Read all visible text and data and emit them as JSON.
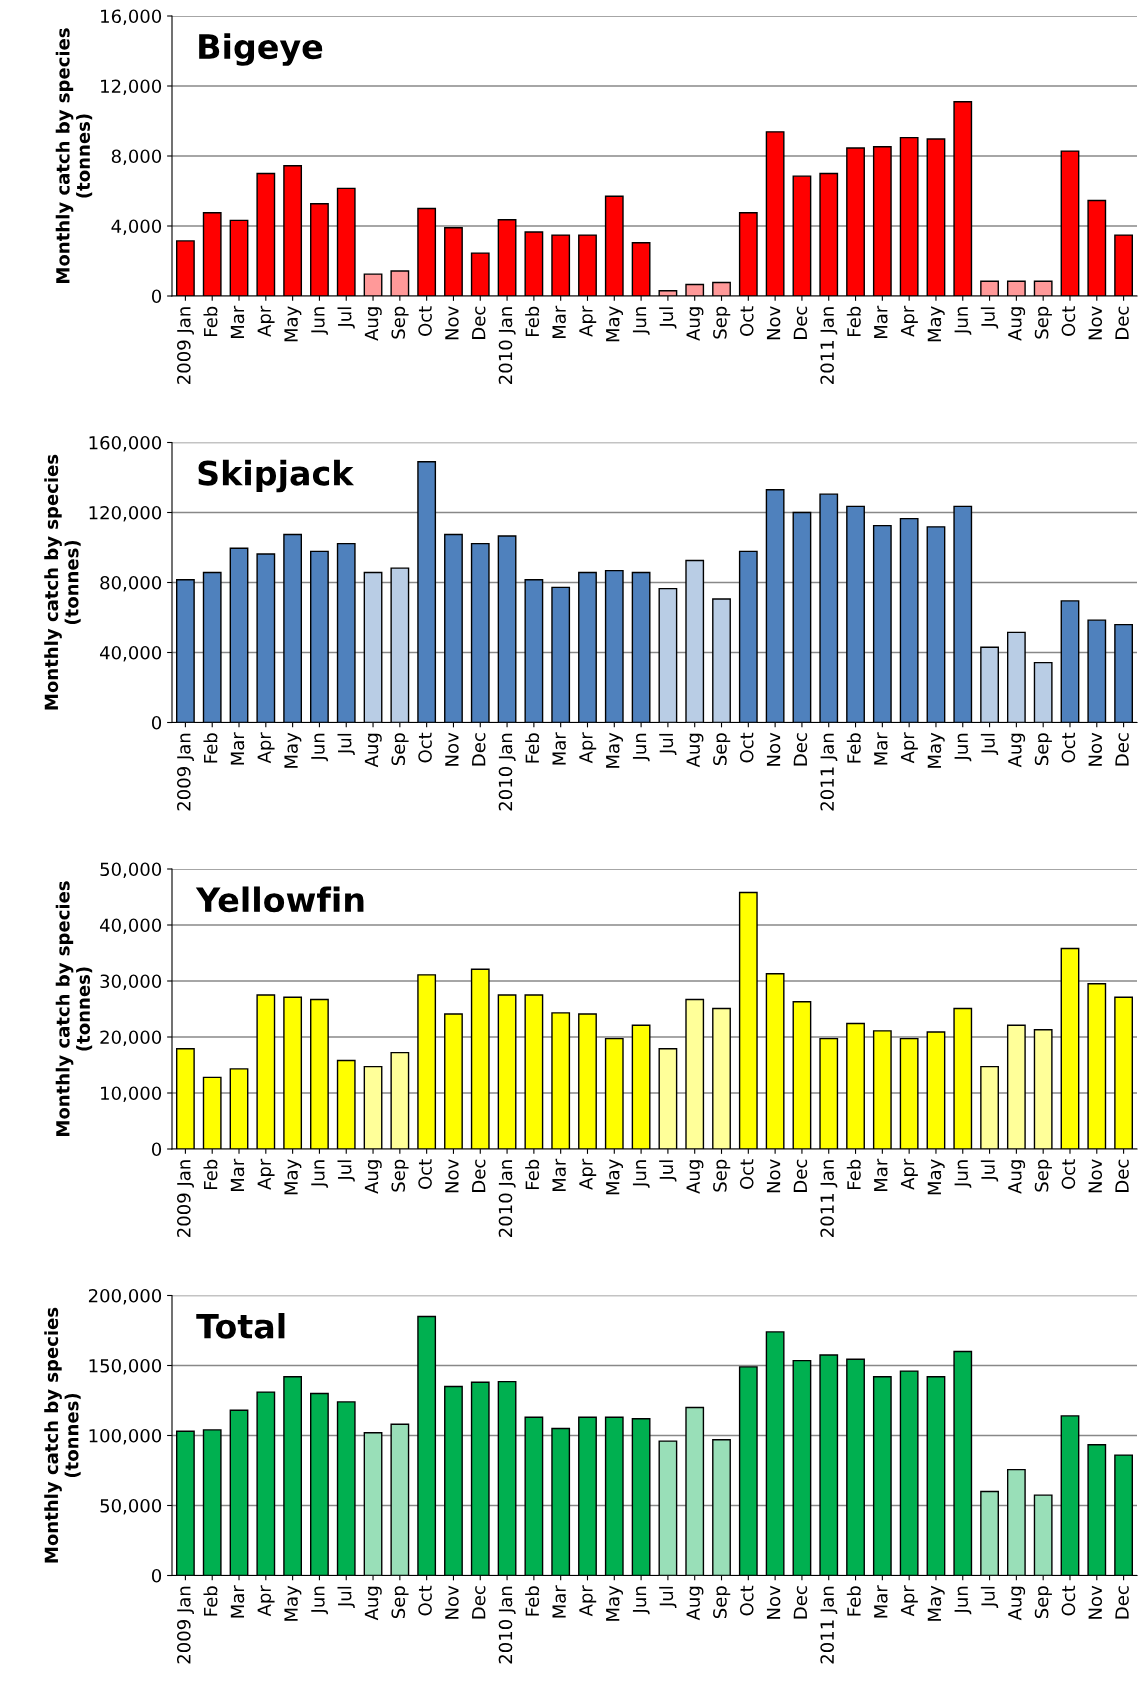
{
  "chart_data": [
    {
      "type": "bar",
      "title": "Bigeye",
      "ylabel": "Monthly catch by species\n(tonnes)",
      "categories": [
        "2009 Jan",
        "Feb",
        "Mar",
        "Apr",
        "May",
        "Jun",
        "Jul",
        "Aug",
        "Sep",
        "Oct",
        "Nov",
        "Dec",
        "2010 Jan",
        "Feb",
        "Mar",
        "Apr",
        "May",
        "Jun",
        "Jul",
        "Aug",
        "Sep",
        "Oct",
        "Nov",
        "Dec",
        "2011 Jan",
        "Feb",
        "Mar",
        "Apr",
        "May",
        "Jun",
        "Jul",
        "Aug",
        "Sep",
        "Oct",
        "Nov",
        "Dec"
      ],
      "values": [
        3150,
        4760,
        4320,
        7000,
        7440,
        5270,
        6150,
        1250,
        1430,
        5000,
        3900,
        2450,
        4360,
        3660,
        3480,
        3480,
        5700,
        3040,
        300,
        660,
        770,
        4760,
        9380,
        6850,
        7000,
        8460,
        8530,
        9050,
        8970,
        11100,
        840,
        840,
        840,
        8280,
        5460,
        3480
      ],
      "colors": [
        "#ff0000",
        "#ff0000",
        "#ff0000",
        "#ff0000",
        "#ff0000",
        "#ff0000",
        "#ff0000",
        "#ff9999",
        "#ff9999",
        "#ff0000",
        "#ff0000",
        "#ff0000",
        "#ff0000",
        "#ff0000",
        "#ff0000",
        "#ff0000",
        "#ff0000",
        "#ff0000",
        "#ff9999",
        "#ff9999",
        "#ff9999",
        "#ff0000",
        "#ff0000",
        "#ff0000",
        "#ff0000",
        "#ff0000",
        "#ff0000",
        "#ff0000",
        "#ff0000",
        "#ff0000",
        "#ff9999",
        "#ff9999",
        "#ff9999",
        "#ff0000",
        "#ff0000",
        "#ff0000"
      ],
      "ylim": [
        0,
        16000
      ],
      "yticks": [
        {
          "value": 0,
          "label": "0"
        },
        {
          "value": 4000,
          "label": "4,000"
        },
        {
          "value": 8000,
          "label": "8,000"
        },
        {
          "value": 12000,
          "label": "12,000"
        },
        {
          "value": 16000,
          "label": "16,000"
        }
      ],
      "grid": "y",
      "legend": false
    },
    {
      "type": "bar",
      "title": "Skipjack",
      "ylabel": "Monthly catch by species\n(tonnes)",
      "categories": [
        "2009 Jan",
        "Feb",
        "Mar",
        "Apr",
        "May",
        "Jun",
        "Jul",
        "Aug",
        "Sep",
        "Oct",
        "Nov",
        "Dec",
        "2010 Jan",
        "Feb",
        "Mar",
        "Apr",
        "May",
        "Jun",
        "Jul",
        "Aug",
        "Sep",
        "Oct",
        "Nov",
        "Dec",
        "2011 Jan",
        "Feb",
        "Mar",
        "Apr",
        "May",
        "Jun",
        "Jul",
        "Aug",
        "Sep",
        "Oct",
        "Nov",
        "Dec"
      ],
      "values": [
        81600,
        85700,
        99600,
        96300,
        107400,
        97800,
        102200,
        85700,
        88200,
        149000,
        107400,
        102200,
        106600,
        81600,
        77200,
        85700,
        86800,
        85700,
        76500,
        92600,
        70600,
        97800,
        133000,
        120000,
        130500,
        123500,
        112500,
        116500,
        111800,
        123500,
        43000,
        51500,
        34200,
        69500,
        58500,
        55900
      ],
      "colors": [
        "#4f81bd",
        "#4f81bd",
        "#4f81bd",
        "#4f81bd",
        "#4f81bd",
        "#4f81bd",
        "#4f81bd",
        "#b9cde5",
        "#b9cde5",
        "#4f81bd",
        "#4f81bd",
        "#4f81bd",
        "#4f81bd",
        "#4f81bd",
        "#4f81bd",
        "#4f81bd",
        "#4f81bd",
        "#4f81bd",
        "#b9cde5",
        "#b9cde5",
        "#b9cde5",
        "#4f81bd",
        "#4f81bd",
        "#4f81bd",
        "#4f81bd",
        "#4f81bd",
        "#4f81bd",
        "#4f81bd",
        "#4f81bd",
        "#4f81bd",
        "#b9cde5",
        "#b9cde5",
        "#b9cde5",
        "#4f81bd",
        "#4f81bd",
        "#4f81bd"
      ],
      "ylim": [
        0,
        160000
      ],
      "yticks": [
        {
          "value": 0,
          "label": "0"
        },
        {
          "value": 40000,
          "label": "40,000"
        },
        {
          "value": 80000,
          "label": "80,000"
        },
        {
          "value": 120000,
          "label": "120,000"
        },
        {
          "value": 160000,
          "label": "160,000"
        }
      ],
      "grid": "y",
      "legend": false
    },
    {
      "type": "bar",
      "title": "Yellowfin",
      "ylabel": "Monthly catch by species\n(tonnes)",
      "categories": [
        "2009 Jan",
        "Feb",
        "Mar",
        "Apr",
        "May",
        "Jun",
        "Jul",
        "Aug",
        "Sep",
        "Oct",
        "Nov",
        "Dec",
        "2010 Jan",
        "Feb",
        "Mar",
        "Apr",
        "May",
        "Jun",
        "Jul",
        "Aug",
        "Sep",
        "Oct",
        "Nov",
        "Dec",
        "2011 Jan",
        "Feb",
        "Mar",
        "Apr",
        "May",
        "Jun",
        "Jul",
        "Aug",
        "Sep",
        "Oct",
        "Nov",
        "Dec"
      ],
      "values": [
        17900,
        12800,
        14300,
        27500,
        27100,
        26700,
        15800,
        14700,
        17200,
        31100,
        24100,
        32100,
        27500,
        27500,
        24300,
        24100,
        19700,
        22100,
        17900,
        26700,
        25100,
        45800,
        31300,
        26300,
        19700,
        22400,
        21100,
        19700,
        20900,
        25100,
        14700,
        22100,
        21300,
        35800,
        29500,
        27100
      ],
      "colors": [
        "#ffff00",
        "#ffff00",
        "#ffff00",
        "#ffff00",
        "#ffff00",
        "#ffff00",
        "#ffff00",
        "#ffff99",
        "#ffff99",
        "#ffff00",
        "#ffff00",
        "#ffff00",
        "#ffff00",
        "#ffff00",
        "#ffff00",
        "#ffff00",
        "#ffff00",
        "#ffff00",
        "#ffff99",
        "#ffff99",
        "#ffff99",
        "#ffff00",
        "#ffff00",
        "#ffff00",
        "#ffff00",
        "#ffff00",
        "#ffff00",
        "#ffff00",
        "#ffff00",
        "#ffff00",
        "#ffff99",
        "#ffff99",
        "#ffff99",
        "#ffff00",
        "#ffff00",
        "#ffff00"
      ],
      "ylim": [
        0,
        50000
      ],
      "yticks": [
        {
          "value": 0,
          "label": "0"
        },
        {
          "value": 10000,
          "label": "10,000"
        },
        {
          "value": 20000,
          "label": "20,000"
        },
        {
          "value": 30000,
          "label": "30,000"
        },
        {
          "value": 40000,
          "label": "40,000"
        },
        {
          "value": 50000,
          "label": "50,000"
        }
      ],
      "grid": "y",
      "legend": false
    },
    {
      "type": "bar",
      "title": "Total",
      "ylabel": "Monthly catch by species\n(tonnes)",
      "categories": [
        "2009 Jan",
        "Feb",
        "Mar",
        "Apr",
        "May",
        "Jun",
        "Jul",
        "Aug",
        "Sep",
        "Oct",
        "Nov",
        "Dec",
        "2010 Jan",
        "Feb",
        "Mar",
        "Apr",
        "May",
        "Jun",
        "Jul",
        "Aug",
        "Sep",
        "Oct",
        "Nov",
        "Dec",
        "2011 Jan",
        "Feb",
        "Mar",
        "Apr",
        "May",
        "Jun",
        "Jul",
        "Aug",
        "Sep",
        "Oct",
        "Nov",
        "Dec"
      ],
      "values": [
        103000,
        104000,
        118000,
        131000,
        142000,
        130000,
        124000,
        102000,
        108000,
        185000,
        135000,
        138000,
        138500,
        113000,
        105000,
        113000,
        113000,
        112000,
        96000,
        120000,
        97000,
        149000,
        174000,
        153500,
        157500,
        154500,
        142000,
        146000,
        142000,
        160000,
        60000,
        75600,
        57400,
        114000,
        93400,
        86000
      ],
      "colors": [
        "#00b050",
        "#00b050",
        "#00b050",
        "#00b050",
        "#00b050",
        "#00b050",
        "#00b050",
        "#99dfb8",
        "#99dfb8",
        "#00b050",
        "#00b050",
        "#00b050",
        "#00b050",
        "#00b050",
        "#00b050",
        "#00b050",
        "#00b050",
        "#00b050",
        "#99dfb8",
        "#99dfb8",
        "#99dfb8",
        "#00b050",
        "#00b050",
        "#00b050",
        "#00b050",
        "#00b050",
        "#00b050",
        "#00b050",
        "#00b050",
        "#00b050",
        "#99dfb8",
        "#99dfb8",
        "#99dfb8",
        "#00b050",
        "#00b050",
        "#00b050"
      ],
      "ylim": [
        0,
        200000
      ],
      "yticks": [
        {
          "value": 0,
          "label": "0"
        },
        {
          "value": 50000,
          "label": "50,000"
        },
        {
          "value": 100000,
          "label": "100,000"
        },
        {
          "value": 150000,
          "label": "150,000"
        },
        {
          "value": 200000,
          "label": "200,000"
        }
      ],
      "grid": "y",
      "legend": false
    }
  ]
}
